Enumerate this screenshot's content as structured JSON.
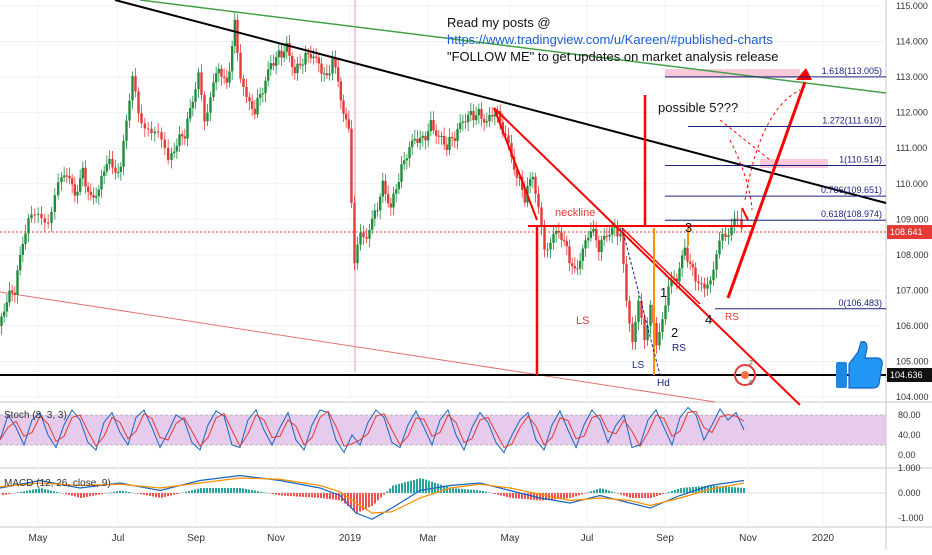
{
  "chart_data": {
    "type": "candlestick",
    "instrument_note": "USDJPY-style daily chart with technical annotations",
    "price_axis": {
      "ticks": [
        "115.000",
        "114.000",
        "113.000",
        "112.000",
        "111.000",
        "110.000",
        "109.000",
        "108.000",
        "107.000",
        "106.000",
        "105.000",
        "104.000"
      ],
      "current_price": "108.641",
      "support_level": "104.636",
      "ylim": [
        103.9,
        115.1
      ]
    },
    "time_axis": [
      "May",
      "Jul",
      "Sep",
      "Nov",
      "2019",
      "Mar",
      "May",
      "Jul",
      "Sep",
      "Nov",
      "2020"
    ],
    "fib_levels": [
      {
        "label": "1.618(113.005)",
        "value": 113.005
      },
      {
        "label": "1.272(111.610)",
        "value": 111.61
      },
      {
        "label": "1(110.514)",
        "value": 110.514
      },
      {
        "label": "0.786(109.651)",
        "value": 109.651
      },
      {
        "label": "0.618(108.974)",
        "value": 108.974
      },
      {
        "label": "0(106.483)",
        "value": 106.483
      }
    ],
    "annotations": {
      "header": [
        "Read my posts @",
        "https://www.tradingview.com/u/Kareen/#published-charts",
        "\"FOLLOW ME\" to get updates on market analysis release"
      ],
      "neckline": "neckline",
      "possible": "possible 5???",
      "ls_main": "LS",
      "ls_small": "LS",
      "rs_small": "RS",
      "rs_main": "RS",
      "hd": "Hd",
      "wave1": "1",
      "wave2": "2",
      "wave3": "3",
      "wave4": "4"
    },
    "price_path": [
      [
        0,
        106.0
      ],
      [
        8,
        106.8
      ],
      [
        16,
        107.0
      ],
      [
        24,
        108.3
      ],
      [
        30,
        108.9
      ],
      [
        40,
        109.3
      ],
      [
        50,
        108.9
      ],
      [
        60,
        109.9
      ],
      [
        68,
        110.3
      ],
      [
        76,
        109.6
      ],
      [
        84,
        110.3
      ],
      [
        92,
        109.6
      ],
      [
        100,
        109.9
      ],
      [
        108,
        110.7
      ],
      [
        114,
        110.4
      ],
      [
        122,
        110.5
      ],
      [
        128,
        111.9
      ],
      [
        134,
        113.0
      ],
      [
        140,
        111.9
      ],
      [
        150,
        111.6
      ],
      [
        160,
        111.3
      ],
      [
        170,
        110.7
      ],
      [
        178,
        111.2
      ],
      [
        186,
        111.4
      ],
      [
        194,
        112.3
      ],
      [
        200,
        113.0
      ],
      [
        206,
        111.8
      ],
      [
        212,
        112.5
      ],
      [
        220,
        113.2
      ],
      [
        228,
        112.7
      ],
      [
        236,
        114.5
      ],
      [
        242,
        113.1
      ],
      [
        248,
        112.3
      ],
      [
        256,
        112.1
      ],
      [
        264,
        112.6
      ],
      [
        272,
        113.3
      ],
      [
        280,
        113.6
      ],
      [
        288,
        113.9
      ],
      [
        296,
        113.2
      ],
      [
        304,
        113.5
      ],
      [
        312,
        113.6
      ],
      [
        320,
        113.3
      ],
      [
        328,
        112.9
      ],
      [
        334,
        113.6
      ],
      [
        342,
        112.3
      ],
      [
        350,
        111.4
      ],
      [
        356,
        107.8
      ],
      [
        362,
        108.5
      ],
      [
        368,
        108.6
      ],
      [
        376,
        109.1
      ],
      [
        384,
        110.0
      ],
      [
        392,
        109.4
      ],
      [
        400,
        110.2
      ],
      [
        408,
        110.8
      ],
      [
        416,
        111.2
      ],
      [
        424,
        111.2
      ],
      [
        432,
        111.7
      ],
      [
        440,
        111.4
      ],
      [
        448,
        111.1
      ],
      [
        456,
        111.3
      ],
      [
        464,
        111.7
      ],
      [
        472,
        111.9
      ],
      [
        480,
        112.0
      ],
      [
        488,
        111.8
      ],
      [
        496,
        112.1
      ],
      [
        504,
        111.5
      ],
      [
        510,
        111.0
      ],
      [
        518,
        110.3
      ],
      [
        526,
        109.6
      ],
      [
        534,
        110.2
      ],
      [
        540,
        109.2
      ],
      [
        546,
        108.2
      ],
      [
        552,
        108.4
      ],
      [
        560,
        108.6
      ],
      [
        568,
        108.1
      ],
      [
        576,
        107.5
      ],
      [
        584,
        108.2
      ],
      [
        592,
        108.8
      ],
      [
        600,
        108.2
      ],
      [
        608,
        108.5
      ],
      [
        616,
        108.7
      ],
      [
        622,
        108.6
      ],
      [
        628,
        106.6
      ],
      [
        634,
        105.7
      ],
      [
        640,
        106.6
      ],
      [
        646,
        105.6
      ],
      [
        652,
        106.7
      ],
      [
        658,
        105.3
      ],
      [
        664,
        106.3
      ],
      [
        670,
        107.1
      ],
      [
        678,
        107.3
      ],
      [
        686,
        108.1
      ],
      [
        694,
        107.5
      ],
      [
        700,
        107.3
      ],
      [
        706,
        106.9
      ],
      [
        712,
        107.4
      ],
      [
        718,
        108.0
      ],
      [
        724,
        108.5
      ],
      [
        730,
        108.7
      ],
      [
        736,
        108.9
      ],
      [
        740,
        108.9
      ],
      [
        744,
        108.6
      ]
    ],
    "stochastic": {
      "label": "Stoch (8, 3, 3)",
      "k": [
        [
          0,
          30
        ],
        [
          8,
          80
        ],
        [
          16,
          55
        ],
        [
          24,
          20
        ],
        [
          32,
          70
        ],
        [
          40,
          85
        ],
        [
          48,
          40
        ],
        [
          56,
          15
        ],
        [
          64,
          60
        ],
        [
          72,
          90
        ],
        [
          80,
          70
        ],
        [
          88,
          25
        ],
        [
          96,
          10
        ],
        [
          104,
          65
        ],
        [
          112,
          85
        ],
        [
          120,
          45
        ],
        [
          128,
          20
        ],
        [
          136,
          75
        ],
        [
          144,
          90
        ],
        [
          152,
          55
        ],
        [
          160,
          15
        ],
        [
          168,
          45
        ],
        [
          176,
          80
        ],
        [
          184,
          70
        ],
        [
          192,
          25
        ],
        [
          200,
          10
        ],
        [
          208,
          60
        ],
        [
          216,
          88
        ],
        [
          224,
          78
        ],
        [
          232,
          20
        ],
        [
          240,
          15
        ],
        [
          248,
          70
        ],
        [
          256,
          90
        ],
        [
          264,
          50
        ],
        [
          272,
          20
        ],
        [
          280,
          55
        ],
        [
          288,
          85
        ],
        [
          296,
          30
        ],
        [
          304,
          10
        ],
        [
          312,
          60
        ],
        [
          320,
          90
        ],
        [
          328,
          85
        ],
        [
          336,
          30
        ],
        [
          344,
          5
        ],
        [
          352,
          40
        ],
        [
          360,
          20
        ],
        [
          368,
          65
        ],
        [
          376,
          90
        ],
        [
          384,
          75
        ],
        [
          392,
          25
        ],
        [
          400,
          15
        ],
        [
          408,
          60
        ],
        [
          416,
          88
        ],
        [
          424,
          55
        ],
        [
          432,
          20
        ],
        [
          440,
          70
        ],
        [
          448,
          90
        ],
        [
          456,
          40
        ],
        [
          464,
          10
        ],
        [
          472,
          55
        ],
        [
          480,
          85
        ],
        [
          488,
          65
        ],
        [
          496,
          25
        ],
        [
          504,
          5
        ],
        [
          512,
          40
        ],
        [
          520,
          70
        ],
        [
          528,
          85
        ],
        [
          536,
          30
        ],
        [
          544,
          10
        ],
        [
          552,
          60
        ],
        [
          560,
          88
        ],
        [
          568,
          50
        ],
        [
          576,
          15
        ],
        [
          584,
          60
        ],
        [
          592,
          90
        ],
        [
          600,
          70
        ],
        [
          608,
          25
        ],
        [
          616,
          60
        ],
        [
          624,
          80
        ],
        [
          632,
          15
        ],
        [
          640,
          20
        ],
        [
          648,
          70
        ],
        [
          656,
          90
        ],
        [
          664,
          55
        ],
        [
          672,
          20
        ],
        [
          680,
          75
        ],
        [
          688,
          95
        ],
        [
          696,
          80
        ],
        [
          704,
          30
        ],
        [
          712,
          60
        ],
        [
          720,
          92
        ],
        [
          728,
          70
        ],
        [
          736,
          85
        ],
        [
          744,
          50
        ]
      ],
      "levels": [
        "80.00",
        "40.00",
        "0.00"
      ]
    },
    "macd": {
      "label": "MACD (12, 26, close, 9)",
      "levels": [
        "1.000",
        "0.000",
        "-1.000"
      ],
      "line": [
        [
          0,
          0.2
        ],
        [
          40,
          0.5
        ],
        [
          80,
          0.2
        ],
        [
          120,
          0.4
        ],
        [
          160,
          0.1
        ],
        [
          200,
          0.5
        ],
        [
          240,
          0.7
        ],
        [
          280,
          0.5
        ],
        [
          320,
          0.2
        ],
        [
          340,
          -0.1
        ],
        [
          356,
          -0.8
        ],
        [
          372,
          -1.05
        ],
        [
          392,
          -0.6
        ],
        [
          420,
          0.1
        ],
        [
          450,
          0.3
        ],
        [
          480,
          0.4
        ],
        [
          510,
          0.1
        ],
        [
          540,
          -0.2
        ],
        [
          570,
          -0.4
        ],
        [
          600,
          -0.1
        ],
        [
          630,
          -0.4
        ],
        [
          650,
          -0.6
        ],
        [
          680,
          -0.1
        ],
        [
          710,
          0.3
        ],
        [
          744,
          0.5
        ]
      ],
      "signal": [
        [
          0,
          0.25
        ],
        [
          40,
          0.4
        ],
        [
          80,
          0.3
        ],
        [
          120,
          0.35
        ],
        [
          160,
          0.2
        ],
        [
          200,
          0.4
        ],
        [
          240,
          0.6
        ],
        [
          280,
          0.55
        ],
        [
          320,
          0.3
        ],
        [
          340,
          0.05
        ],
        [
          356,
          -0.4
        ],
        [
          372,
          -0.8
        ],
        [
          392,
          -0.75
        ],
        [
          420,
          -0.2
        ],
        [
          450,
          0.2
        ],
        [
          480,
          0.35
        ],
        [
          510,
          0.2
        ],
        [
          540,
          -0.05
        ],
        [
          570,
          -0.3
        ],
        [
          600,
          -0.2
        ],
        [
          630,
          -0.3
        ],
        [
          650,
          -0.5
        ],
        [
          680,
          -0.2
        ],
        [
          710,
          0.15
        ],
        [
          744,
          0.4
        ]
      ]
    }
  },
  "colors": {
    "up": "#1e8e3e",
    "down": "#e53935",
    "trend_red": "#ff0000",
    "fib": "#1a237e",
    "stoch_bg": "#e1bee7",
    "stoch_k": "#1565c0",
    "stoch_d": "#e53935",
    "macd_line": "#1565c0",
    "macd_signal": "#ff8f00"
  },
  "icons": [
    "thumbs-up-icon",
    "logo-icon"
  ]
}
